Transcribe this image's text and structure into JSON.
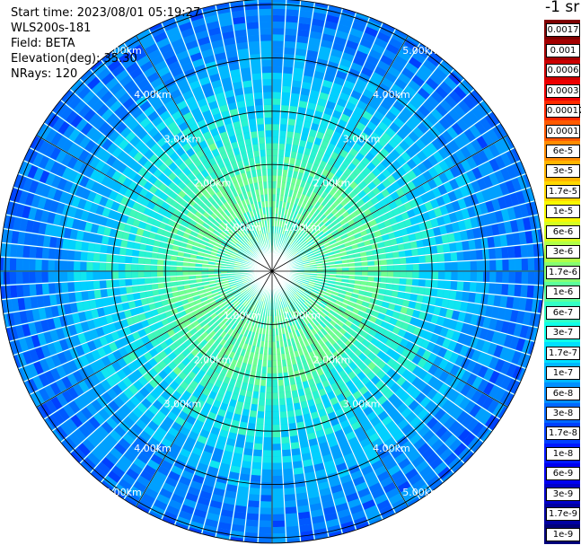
{
  "info": {
    "start_time": "Start time: 2023/08/01 05:19:27",
    "instrument": "WLS200s-181",
    "field": "Field: BETA",
    "elevation": "Elevation(deg): 35.30",
    "nrays": "NRays: 120"
  },
  "colorbar": {
    "title": "-1 sr",
    "labels": [
      "0.0017",
      "0.001",
      "0.0006",
      "0.0003",
      "0.00017",
      "0.0001",
      "6e-5",
      "3e-5",
      "1.7e-5",
      "1e-5",
      "6e-6",
      "3e-6",
      "1.7e-6",
      "1e-6",
      "6e-7",
      "3e-7",
      "1.7e-7",
      "1e-7",
      "6e-8",
      "3e-8",
      "1.7e-8",
      "1e-8",
      "6e-9",
      "3e-9",
      "1.7e-9",
      "1e-9"
    ],
    "colors": [
      "#7f0000",
      "#a30000",
      "#cc0000",
      "#ee0000",
      "#ff2a00",
      "#ff5a00",
      "#ff8c00",
      "#ffb400",
      "#ffd800",
      "#f8f800",
      "#d6ff21",
      "#b0ff47",
      "#86ff71",
      "#5cff9b",
      "#33ffc4",
      "#10ffe8",
      "#00e0ff",
      "#00b8ff",
      "#0090ff",
      "#0068ff",
      "#0040ff",
      "#0018ff",
      "#0000f0",
      "#0000c8",
      "#0000a0",
      "#00007a"
    ]
  },
  "chart_data": {
    "type": "heatmap",
    "projection": "polar-ppi",
    "n_rays": 120,
    "range_rings_km": [
      1.0,
      2.0,
      3.0,
      4.0,
      5.0
    ],
    "range_ring_labels": [
      "1.00km",
      "2.00km",
      "3.00km",
      "4.00km",
      "5.00km"
    ],
    "max_range_km": 5.1,
    "azimuth_lines_deg": [
      0,
      30,
      60,
      90,
      120,
      150
    ],
    "beta_profile": [
      {
        "range_km": 0.3,
        "beta": 1.7e-07,
        "color": "#20f0d8"
      },
      {
        "range_km": 1.0,
        "beta": 2.5e-07,
        "color": "#2cf6cc"
      },
      {
        "range_km": 1.7,
        "beta": 3e-07,
        "color": "#3cf6c0"
      },
      {
        "range_km": 2.3,
        "beta": 1.7e-07,
        "color": "#10e6f0"
      },
      {
        "range_km": 3.0,
        "beta": 1e-07,
        "color": "#00c8ff"
      },
      {
        "range_km": 3.6,
        "beta": 6e-08,
        "color": "#00a8ff"
      },
      {
        "range_km": 4.2,
        "beta": 3e-08,
        "color": "#0080ff"
      },
      {
        "range_km": 4.8,
        "beta": 2e-08,
        "color": "#0066ee"
      }
    ]
  }
}
